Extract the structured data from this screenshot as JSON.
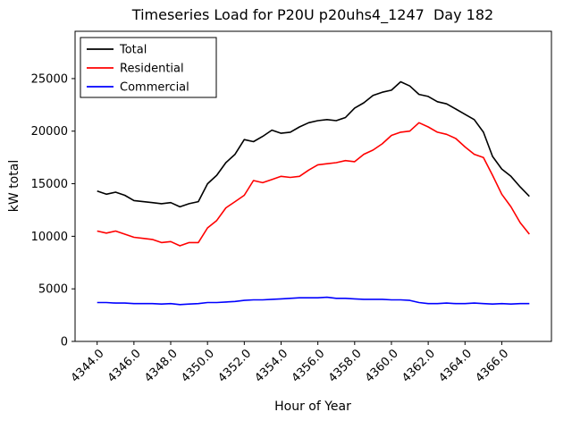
{
  "figure": {
    "background": "#ffffff",
    "frame_color": "#000000"
  },
  "chart_data": {
    "type": "line",
    "title": "Timeseries Load for P20U p20uhs4_1247  Day 182",
    "xlabel": "Hour of Year",
    "ylabel": "kW total",
    "xlim": [
      4342.8,
      4368.7
    ],
    "ylim": [
      0,
      29500
    ],
    "grid": false,
    "legend_position": "upper left",
    "xtick_values": [
      4344,
      4346,
      4348,
      4350,
      4352,
      4354,
      4356,
      4358,
      4360,
      4362,
      4364,
      4366
    ],
    "xtick_labels": [
      "4344.0",
      "4346.0",
      "4348.0",
      "4350.0",
      "4352.0",
      "4354.0",
      "4356.0",
      "4358.0",
      "4360.0",
      "4362.0",
      "4364.0",
      "4366.0"
    ],
    "ytick_values": [
      0,
      5000,
      10000,
      15000,
      20000,
      25000
    ],
    "ytick_labels": [
      "0",
      "5000",
      "10000",
      "15000",
      "20000",
      "25000"
    ],
    "x": [
      4344.0,
      4344.5,
      4345.0,
      4345.5,
      4346.0,
      4346.5,
      4347.0,
      4347.5,
      4348.0,
      4348.5,
      4349.0,
      4349.5,
      4350.0,
      4350.5,
      4351.0,
      4351.5,
      4352.0,
      4352.5,
      4353.0,
      4353.5,
      4354.0,
      4354.5,
      4355.0,
      4355.5,
      4356.0,
      4356.5,
      4357.0,
      4357.5,
      4358.0,
      4358.5,
      4359.0,
      4359.5,
      4360.0,
      4360.5,
      4361.0,
      4361.5,
      4362.0,
      4362.5,
      4363.0,
      4363.5,
      4364.0,
      4364.5,
      4365.0,
      4365.5,
      4366.0,
      4366.5,
      4367.0,
      4367.5
    ],
    "series": [
      {
        "name": "Total",
        "color": "#000000",
        "values": [
          14300,
          14000,
          14200,
          13900,
          13400,
          13300,
          13200,
          13100,
          13200,
          12800,
          13100,
          13300,
          15000,
          15800,
          17000,
          17800,
          19200,
          19000,
          19500,
          20100,
          19800,
          19900,
          20400,
          20800,
          21000,
          21100,
          21000,
          21300,
          22200,
          22700,
          23400,
          23700,
          23900,
          24700,
          24300,
          23500,
          23300,
          22800,
          22600,
          22100,
          21600,
          21100,
          19900,
          17600,
          16400,
          15700,
          14700,
          13800
        ]
      },
      {
        "name": "Residential",
        "color": "#ff0000",
        "values": [
          10500,
          10300,
          10500,
          10200,
          9900,
          9800,
          9700,
          9400,
          9500,
          9100,
          9400,
          9400,
          10800,
          11500,
          12700,
          13300,
          13900,
          15300,
          15100,
          15400,
          15700,
          15600,
          15700,
          16300,
          16800,
          16900,
          17000,
          17200,
          17100,
          17800,
          18200,
          18800,
          19600,
          19900,
          20000,
          20800,
          20400,
          19900,
          19700,
          19300,
          18500,
          17800,
          17500,
          15800,
          14000,
          12800,
          11300,
          10200
        ]
      },
      {
        "name": "Commercial",
        "color": "#0000ff",
        "values": [
          3700,
          3700,
          3650,
          3650,
          3600,
          3600,
          3600,
          3550,
          3600,
          3500,
          3550,
          3600,
          3700,
          3700,
          3750,
          3800,
          3900,
          3950,
          3950,
          4000,
          4050,
          4100,
          4150,
          4150,
          4150,
          4200,
          4100,
          4100,
          4050,
          4000,
          4000,
          4000,
          3950,
          3950,
          3900,
          3700,
          3600,
          3600,
          3650,
          3600,
          3600,
          3650,
          3600,
          3550,
          3600,
          3550,
          3600,
          3600
        ]
      }
    ]
  }
}
